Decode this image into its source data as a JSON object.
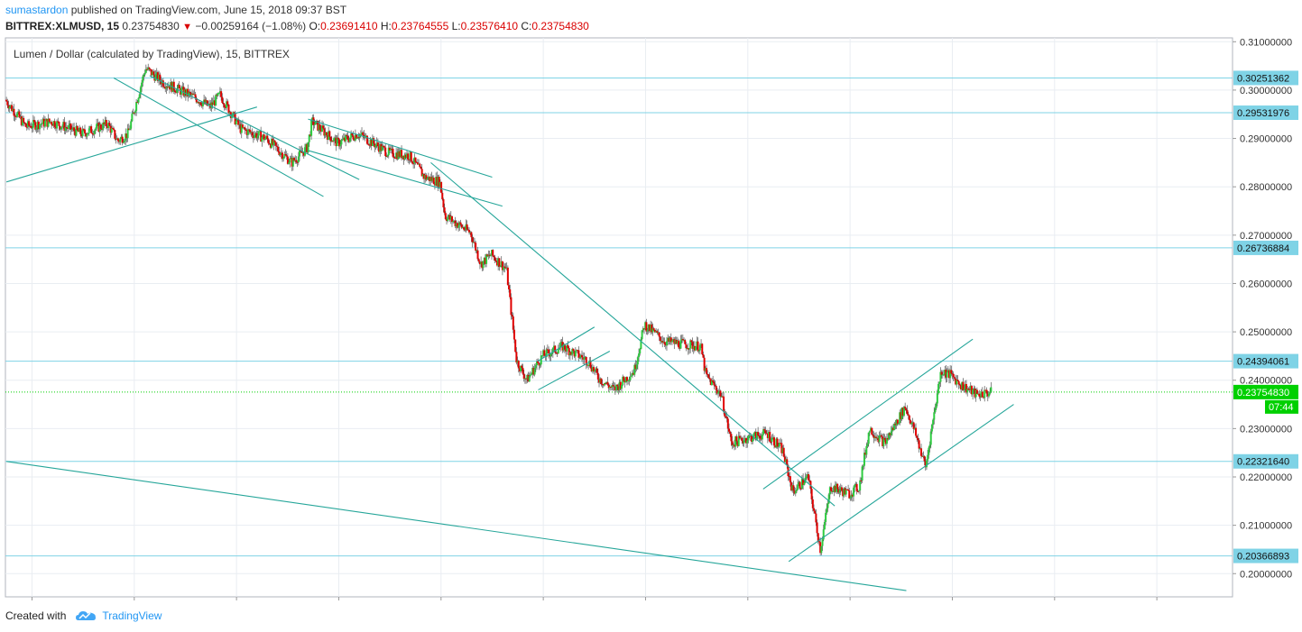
{
  "header": {
    "author": "sumastardon",
    "published_text": "published on TradingView.com, June 15, 2018 09:37 BST",
    "symbol": "BITTREX:XLMUSD, 15",
    "last": "0.23754830",
    "change": "−0.00259164 (−1.08%)",
    "o_label": "O:",
    "o": "0.23691410",
    "h_label": "H:",
    "h": "0.23764555",
    "l_label": "L:",
    "l": "0.23576410",
    "c_label": "C:",
    "c": "0.23754830"
  },
  "chart_title": "Lumen / Dollar (calculated by TradingView), 15, BITTREX",
  "footer": {
    "created_with": "Created with",
    "brand": "TradingView"
  },
  "colors": {
    "up": "#2ecc40",
    "down": "#e00000",
    "trendline": "#26a69a",
    "hline": "#7fd3e6",
    "price_tag": "#7fd3e6",
    "last_tag": "#00d000",
    "grid": "#e9edf2"
  },
  "chart_data": {
    "type": "candlestick",
    "title": "Lumen / Dollar (calculated by TradingView), 15, BITTREX",
    "ylim": [
      0.1952,
      0.3108
    ],
    "xlim": [
      5.74,
      17.74
    ],
    "x_ticks": [
      6,
      7,
      8,
      9,
      10,
      11,
      12,
      13,
      14,
      15,
      16,
      17
    ],
    "y_ticks": [
      "0.31000000",
      "0.30000000",
      "0.29000000",
      "0.28000000",
      "0.27000000",
      "0.26000000",
      "0.25000000",
      "0.24000000",
      "0.23000000",
      "0.22000000",
      "0.21000000",
      "0.20000000"
    ],
    "horizontal_levels": [
      "0.30251362",
      "0.29531976",
      "0.26736884",
      "0.24394061",
      "0.22321640",
      "0.20366893"
    ],
    "last_price": "0.23754830",
    "countdown": "07:44",
    "path_keypoints": [
      [
        5.75,
        0.298
      ],
      [
        5.95,
        0.2925
      ],
      [
        6.2,
        0.2935
      ],
      [
        6.5,
        0.291
      ],
      [
        6.75,
        0.293
      ],
      [
        6.85,
        0.2895
      ],
      [
        6.95,
        0.291
      ],
      [
        7.05,
        0.299
      ],
      [
        7.12,
        0.3045
      ],
      [
        7.3,
        0.3015
      ],
      [
        7.6,
        0.2985
      ],
      [
        7.75,
        0.2965
      ],
      [
        7.85,
        0.299
      ],
      [
        8.05,
        0.292
      ],
      [
        8.3,
        0.29
      ],
      [
        8.55,
        0.285
      ],
      [
        8.7,
        0.288
      ],
      [
        8.75,
        0.2935
      ],
      [
        9.0,
        0.289
      ],
      [
        9.2,
        0.291
      ],
      [
        9.5,
        0.287
      ],
      [
        9.7,
        0.2865
      ],
      [
        9.85,
        0.282
      ],
      [
        10.0,
        0.281
      ],
      [
        10.05,
        0.274
      ],
      [
        10.3,
        0.2705
      ],
      [
        10.4,
        0.264
      ],
      [
        10.5,
        0.266
      ],
      [
        10.65,
        0.263
      ],
      [
        10.75,
        0.244
      ],
      [
        10.85,
        0.24
      ],
      [
        11.0,
        0.245
      ],
      [
        11.2,
        0.247
      ],
      [
        11.45,
        0.244
      ],
      [
        11.55,
        0.2405
      ],
      [
        11.7,
        0.238
      ],
      [
        11.9,
        0.242
      ],
      [
        12.0,
        0.2515
      ],
      [
        12.2,
        0.248
      ],
      [
        12.55,
        0.247
      ],
      [
        12.6,
        0.241
      ],
      [
        12.75,
        0.237
      ],
      [
        12.85,
        0.227
      ],
      [
        13.0,
        0.228
      ],
      [
        13.2,
        0.229
      ],
      [
        13.35,
        0.2255
      ],
      [
        13.45,
        0.217
      ],
      [
        13.6,
        0.22
      ],
      [
        13.72,
        0.205
      ],
      [
        13.82,
        0.218
      ],
      [
        14.0,
        0.2165
      ],
      [
        14.1,
        0.218
      ],
      [
        14.2,
        0.23
      ],
      [
        14.35,
        0.227
      ],
      [
        14.55,
        0.2345
      ],
      [
        14.65,
        0.229
      ],
      [
        14.75,
        0.222
      ],
      [
        14.8,
        0.229
      ],
      [
        14.9,
        0.242
      ],
      [
        15.0,
        0.241
      ],
      [
        15.1,
        0.239
      ],
      [
        15.25,
        0.237
      ],
      [
        15.38,
        0.2375
      ]
    ],
    "trendlines": [
      [
        [
          5.75,
          0.281
        ],
        [
          8.2,
          0.2965
        ]
      ],
      [
        [
          6.8,
          0.3025
        ],
        [
          8.85,
          0.278
        ]
      ],
      [
        [
          7.15,
          0.303
        ],
        [
          9.2,
          0.2815
        ]
      ],
      [
        [
          8.7,
          0.294
        ],
        [
          10.5,
          0.282
        ]
      ],
      [
        [
          8.7,
          0.2875
        ],
        [
          10.6,
          0.276
        ]
      ],
      [
        [
          9.9,
          0.285
        ],
        [
          13.85,
          0.214
        ]
      ],
      [
        [
          10.95,
          0.244
        ],
        [
          11.5,
          0.251
        ]
      ],
      [
        [
          10.95,
          0.238
        ],
        [
          11.65,
          0.246
        ]
      ],
      [
        [
          13.15,
          0.2175
        ],
        [
          15.2,
          0.2485
        ]
      ],
      [
        [
          13.4,
          0.2025
        ],
        [
          15.6,
          0.235
        ]
      ],
      [
        [
          5.75,
          0.2232
        ],
        [
          14.55,
          0.1965
        ]
      ]
    ]
  }
}
